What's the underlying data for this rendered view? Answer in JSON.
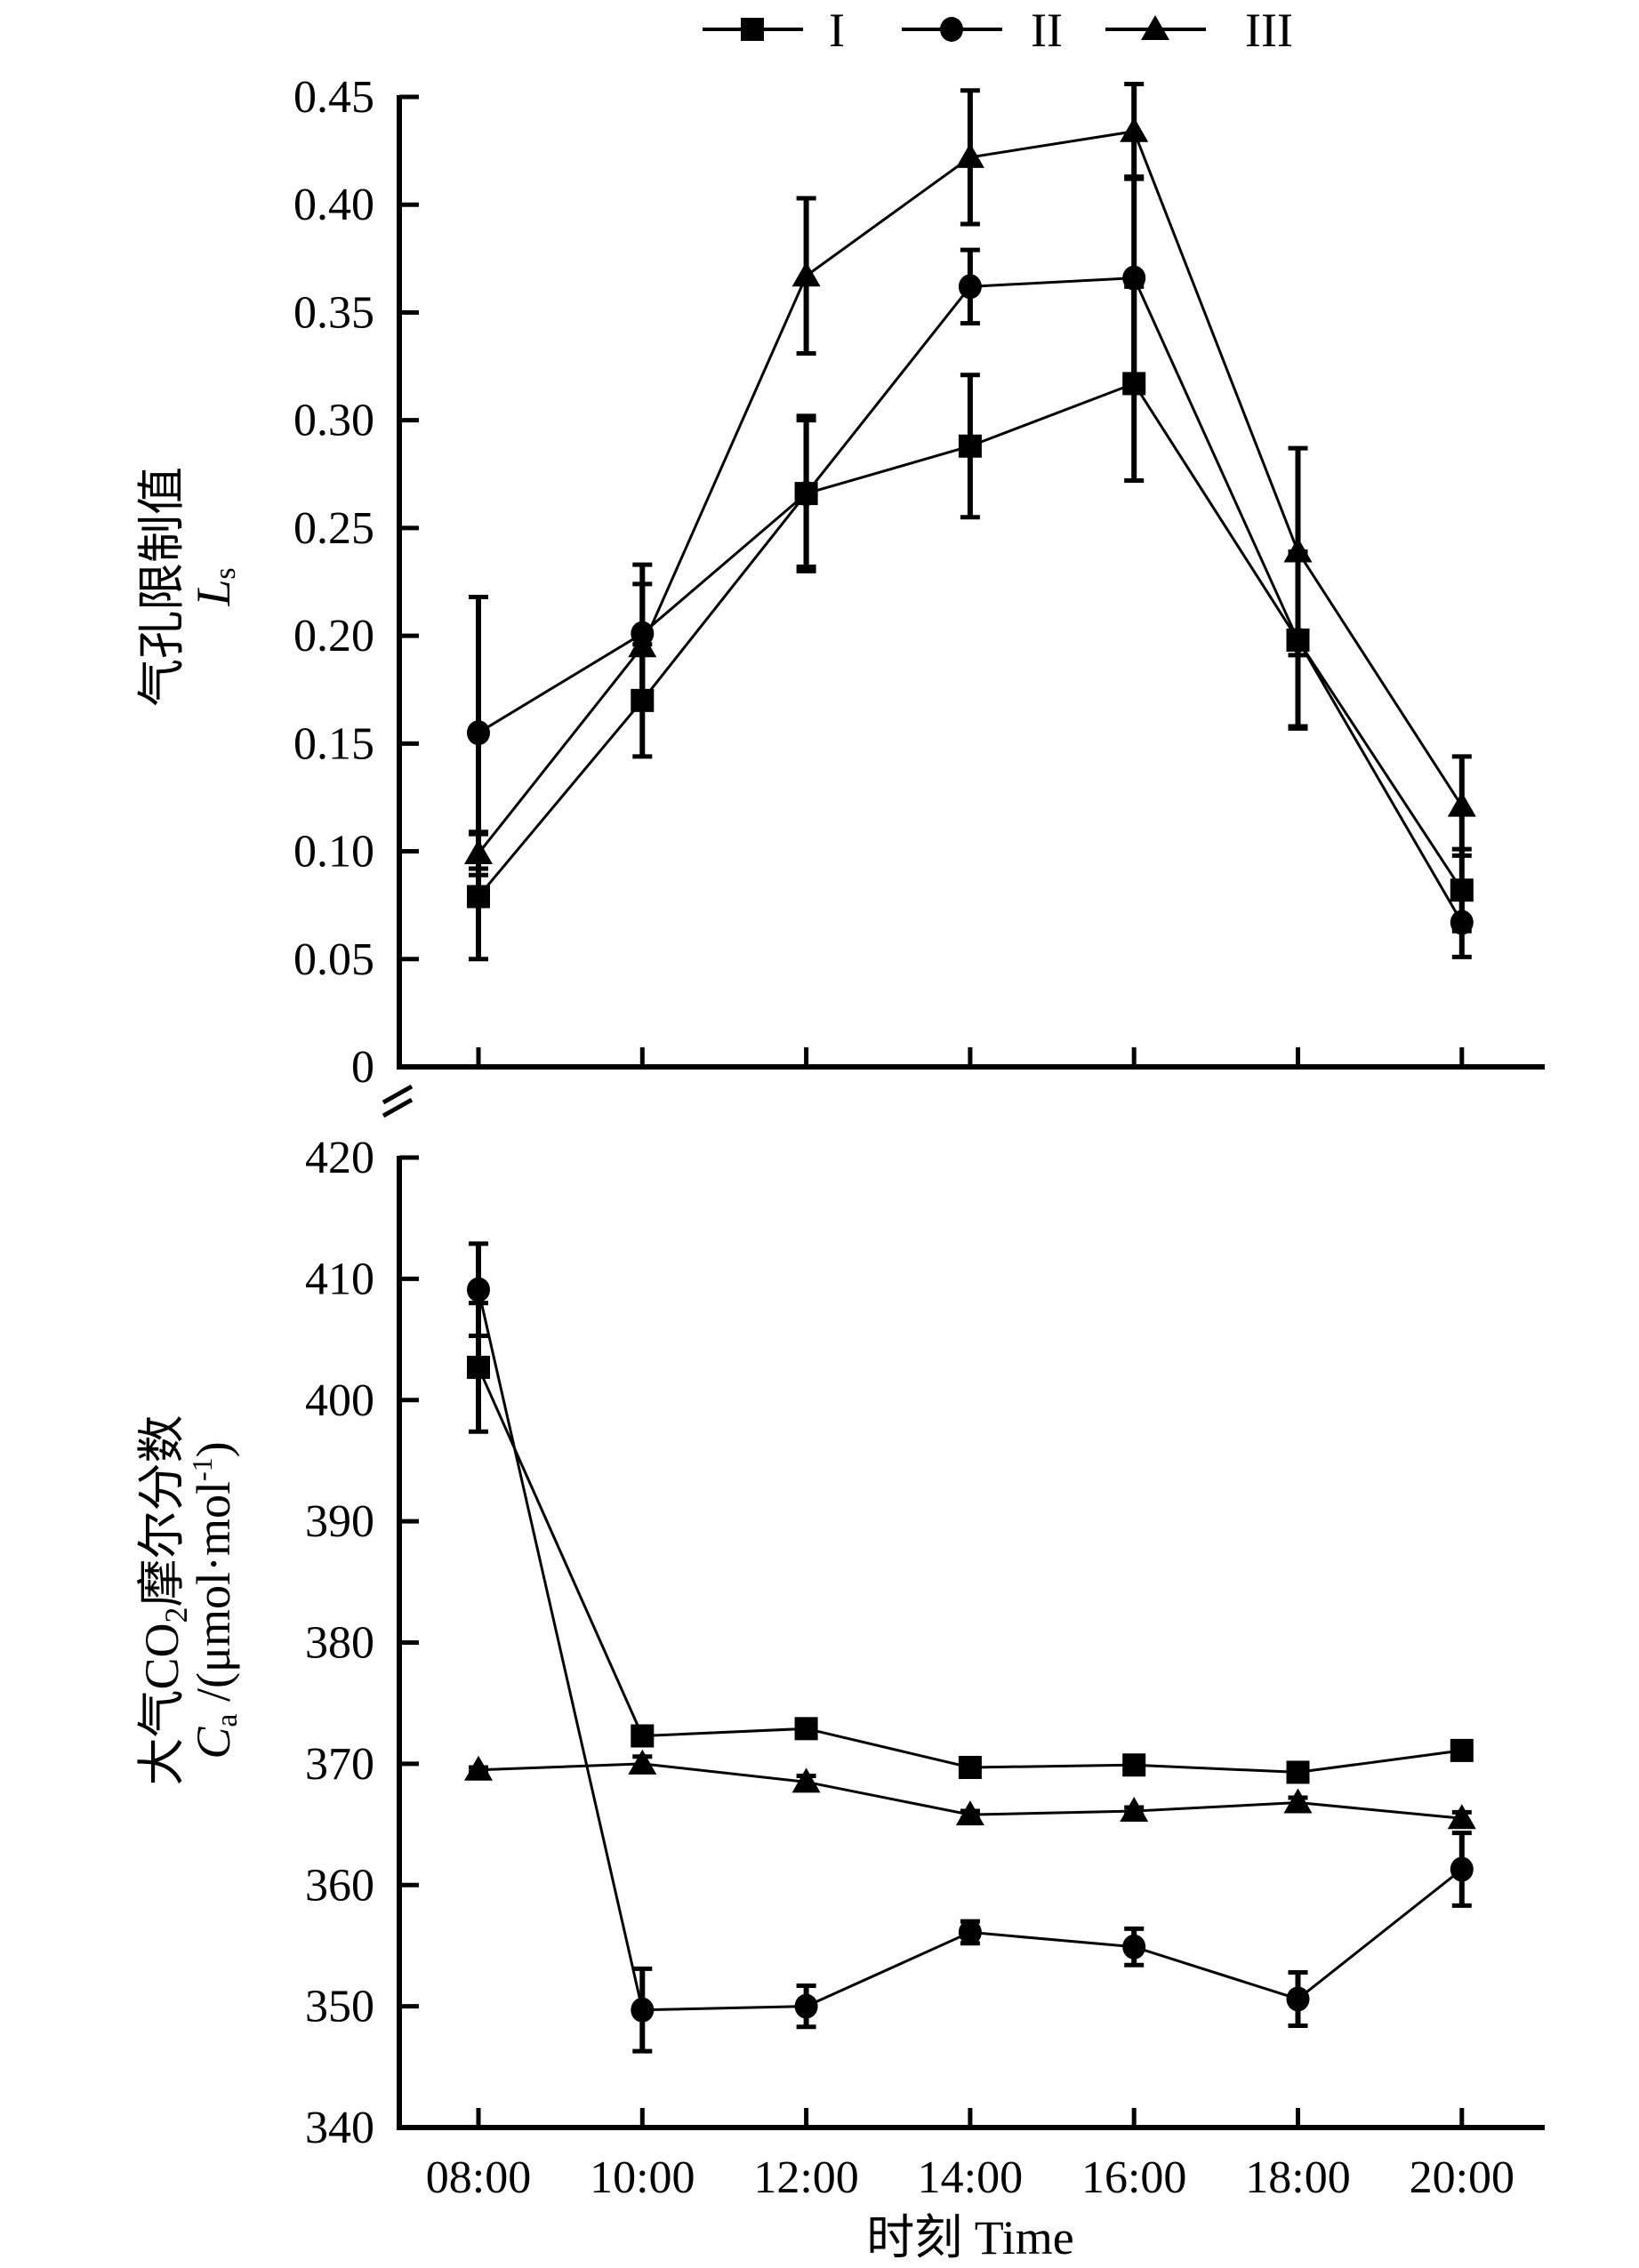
{
  "chart_data": [
    {
      "type": "line",
      "panel": "top",
      "title": "",
      "ylabel_line1": "气孔限制值",
      "ylabel_symbol": "L",
      "ylabel_subscript": "s",
      "xlabel": "",
      "ylim": [
        0,
        0.45
      ],
      "yticks": [
        0,
        0.05,
        0.1,
        0.15,
        0.2,
        0.25,
        0.3,
        0.35,
        0.4,
        0.45
      ],
      "ytick_labels": [
        "0",
        "0.05",
        "0.10",
        "0.15",
        "0.20",
        "0.25",
        "0.30",
        "0.35",
        "0.40",
        "0.45"
      ],
      "categories": [
        "08:00",
        "10:00",
        "12:00",
        "14:00",
        "16:00",
        "18:00",
        "20:00"
      ],
      "grid": false,
      "error_bars": true,
      "series": [
        {
          "name": "I",
          "marker": "square",
          "values": [
            0.079,
            0.17,
            0.266,
            0.288,
            0.317,
            0.198,
            0.082
          ],
          "errors": [
            0.029,
            0.026,
            0.036,
            0.033,
            0.045,
            0.04,
            0.019
          ]
        },
        {
          "name": "II",
          "marker": "circle",
          "values": [
            0.155,
            0.201,
            0.266,
            0.362,
            0.366,
            0.198,
            0.067
          ],
          "errors": [
            0.063,
            0.032,
            0.034,
            0.017,
            0.047,
            0.041,
            0.016
          ]
        },
        {
          "name": "III",
          "marker": "triangle",
          "values": [
            0.099,
            0.195,
            0.367,
            0.422,
            0.434,
            0.239,
            0.121
          ],
          "errors": [
            0.01,
            0.029,
            0.036,
            0.031,
            0.022,
            0.048,
            0.023
          ]
        }
      ]
    },
    {
      "type": "line",
      "panel": "bottom",
      "title": "",
      "ylabel_line1_pre": "大气CO",
      "ylabel_line1_sub": "2",
      "ylabel_line1_post": "摩尔分数",
      "ylabel_symbol": "C",
      "ylabel_subscript": "a",
      "ylabel_unit_pre": " /(μmol·mol",
      "ylabel_unit_sup": "-1",
      "ylabel_unit_post": ")",
      "xlabel": "时刻  Time",
      "ylim": [
        340,
        420
      ],
      "yticks": [
        340,
        350,
        360,
        370,
        380,
        390,
        400,
        410,
        420
      ],
      "ytick_labels": [
        "340",
        "350",
        "360",
        "370",
        "380",
        "390",
        "400",
        "410",
        "420"
      ],
      "categories": [
        "08:00",
        "10:00",
        "12:00",
        "14:00",
        "16:00",
        "18:00",
        "20:00"
      ],
      "grid": false,
      "error_bars": true,
      "series": [
        {
          "name": "I",
          "marker": "square",
          "values": [
            402.7,
            372.3,
            372.9,
            369.7,
            369.9,
            369.3,
            371.1
          ],
          "errors": [
            5.3,
            0.5,
            0.4,
            0.4,
            0.4,
            0.4,
            0.4
          ]
        },
        {
          "name": "II",
          "marker": "circle",
          "values": [
            409.1,
            349.7,
            350.0,
            356.1,
            354.9,
            350.6,
            361.3
          ],
          "errors": [
            3.8,
            3.4,
            1.7,
            0.9,
            1.5,
            2.2,
            3.0
          ]
        },
        {
          "name": "III",
          "marker": "triangle",
          "values": [
            369.5,
            370.0,
            368.5,
            365.8,
            366.1,
            366.8,
            365.5
          ],
          "errors": [
            0.2,
            0.6,
            0.5,
            0.3,
            0.3,
            0.4,
            0.5
          ]
        }
      ]
    }
  ],
  "legend": {
    "placement": "top-center",
    "entries": [
      {
        "label": "I",
        "marker": "square"
      },
      {
        "label": "II",
        "marker": "circle"
      },
      {
        "label": "III",
        "marker": "triangle"
      }
    ]
  },
  "colors": {
    "ink": "#000000",
    "background": "#ffffff"
  }
}
